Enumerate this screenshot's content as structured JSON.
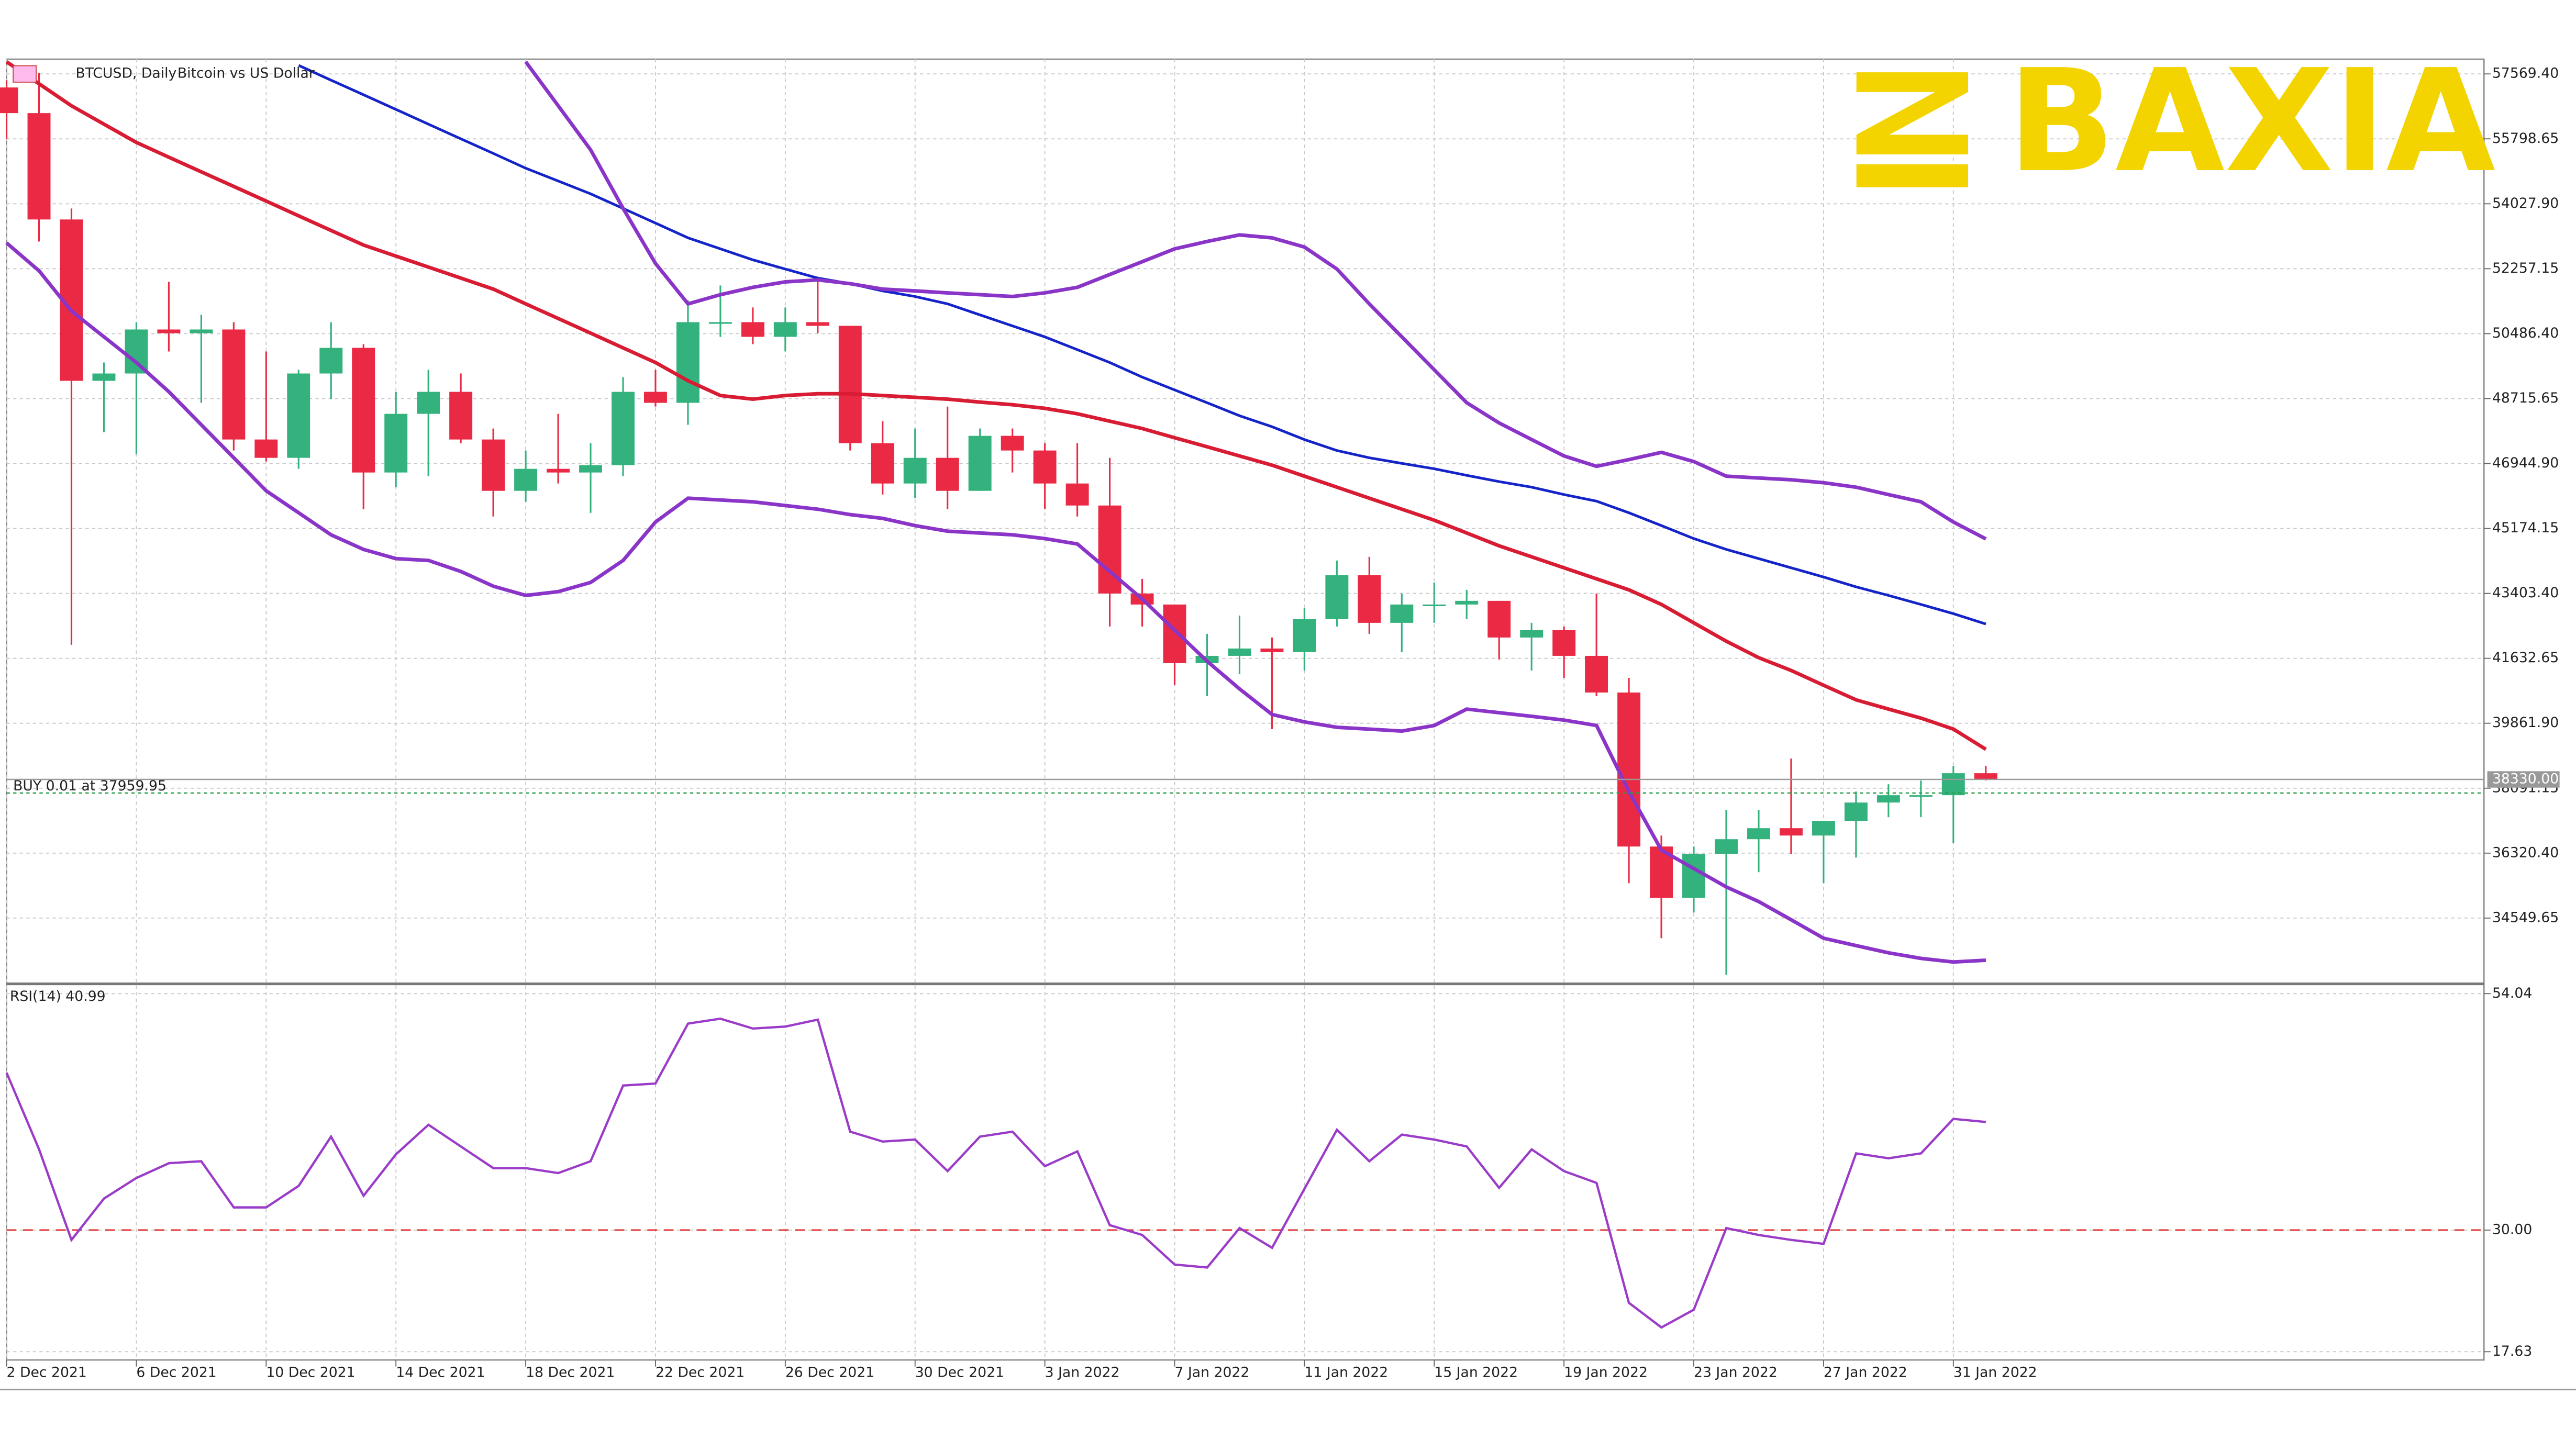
{
  "logo": "BAXIA",
  "chart_data": [
    {
      "type": "candlestick",
      "title": "BTCUSD, Daily",
      "subtitle": "Bitcoin vs US Dollar",
      "categories": [
        "2 Dec 2021",
        null,
        null,
        null,
        "6 Dec 2021",
        null,
        null,
        null,
        "10 Dec 2021",
        null,
        null,
        null,
        "14 Dec 2021",
        null,
        null,
        null,
        "18 Dec 2021",
        null,
        null,
        null,
        "22 Dec 2021",
        null,
        null,
        null,
        "26 Dec 2021",
        null,
        null,
        null,
        "30 Dec 2021",
        null,
        null,
        null,
        "3 Jan 2022",
        null,
        null,
        null,
        "7 Jan 2022",
        null,
        null,
        null,
        "11 Jan 2022",
        null,
        null,
        null,
        "15 Jan 2022",
        null,
        null,
        null,
        "19 Jan 2022",
        null,
        null,
        null,
        "23 Jan 2022",
        null,
        null,
        null,
        "27 Jan 2022",
        null,
        null,
        null,
        "31 Jan 2022",
        null
      ],
      "open": [
        57200,
        56500,
        53600,
        49200,
        49400,
        50600,
        50500,
        50600,
        47600,
        47100,
        49400,
        50100,
        46700,
        48300,
        48900,
        47600,
        46200,
        46800,
        46700,
        46900,
        48900,
        48600,
        50800,
        50800,
        50400,
        50800,
        50700,
        47500,
        46400,
        47100,
        46200,
        47700,
        47300,
        46400,
        45800,
        43400,
        43100,
        41500,
        41700,
        41900,
        41800,
        42700,
        43900,
        42600,
        43100,
        43100,
        43200,
        42200,
        42400,
        41700,
        40700,
        36500,
        35100,
        36300,
        36700,
        37000,
        36800,
        37200,
        37700,
        37900,
        37900,
        38500
      ],
      "high": [
        57400,
        57600,
        53900,
        49700,
        50800,
        51900,
        51000,
        50800,
        50000,
        49500,
        50800,
        50200,
        48900,
        49500,
        49400,
        47900,
        47300,
        48300,
        47500,
        49300,
        49500,
        51400,
        51800,
        51200,
        51200,
        52000,
        50700,
        48100,
        47900,
        48500,
        47900,
        47900,
        47500,
        47500,
        47100,
        43800,
        43100,
        42300,
        42800,
        42200,
        43000,
        44300,
        44400,
        43400,
        43700,
        43500,
        43200,
        42600,
        42500,
        43400,
        41100,
        36800,
        36500,
        37500,
        37500,
        38900,
        37200,
        38000,
        38200,
        38300,
        38700,
        38700
      ],
      "low": [
        55800,
        53000,
        42000,
        47800,
        47200,
        50000,
        48600,
        47300,
        47000,
        46800,
        48700,
        45700,
        46300,
        46600,
        47500,
        45500,
        45900,
        46400,
        45600,
        46600,
        48500,
        48000,
        50400,
        50200,
        50000,
        50500,
        47300,
        46100,
        46000,
        45700,
        46200,
        46700,
        45700,
        45500,
        42500,
        42500,
        40900,
        40600,
        41200,
        39700,
        41300,
        42500,
        42300,
        41800,
        42600,
        42700,
        41600,
        41300,
        41100,
        40600,
        35500,
        34000,
        34700,
        33000,
        35800,
        36300,
        35500,
        36200,
        37300,
        37300,
        36600,
        38300
      ],
      "close": [
        56500,
        53600,
        49200,
        49400,
        50600,
        50500,
        50600,
        47600,
        47100,
        49400,
        50100,
        46700,
        48300,
        48900,
        47600,
        46200,
        46800,
        46700,
        46900,
        48900,
        48600,
        50800,
        50800,
        50400,
        50800,
        50700,
        47500,
        46400,
        47100,
        46200,
        47700,
        47300,
        46400,
        45800,
        43400,
        43100,
        41500,
        41700,
        41900,
        41800,
        42700,
        43900,
        42600,
        43100,
        43100,
        43200,
        42200,
        42400,
        41700,
        40700,
        36500,
        35100,
        36300,
        36700,
        37000,
        36800,
        37200,
        37700,
        37900,
        37900,
        38500,
        38330
      ],
      "up_color": "#34b27d",
      "down_color": "#ea2a44",
      "overlays": [
        {
          "color": "#d81c33",
          "values": [
            57900,
            57300,
            56700,
            56200,
            55700,
            55300,
            54900,
            54500,
            54100,
            53700,
            53300,
            52900,
            52600,
            52300,
            52000,
            51700,
            51300,
            50900,
            50500,
            50100,
            49700,
            49200,
            48800,
            48700,
            48800,
            48850,
            48850,
            48800,
            48750,
            48700,
            48620,
            48550,
            48450,
            48300,
            48100,
            47900,
            47650,
            47400,
            47150,
            46900,
            46600,
            46300,
            46000,
            45700,
            45400,
            45050,
            44700,
            44400,
            44100,
            43800,
            43500,
            43100,
            42600,
            42100,
            41650,
            41300,
            40900,
            40500,
            40250,
            40000,
            39700,
            39150
          ]
        },
        {
          "color": "#1424c8",
          "values": [
            null,
            null,
            null,
            null,
            null,
            null,
            null,
            null,
            null,
            57800,
            57400,
            57000,
            56600,
            56200,
            55800,
            55400,
            55000,
            54650,
            54300,
            53900,
            53500,
            53100,
            52800,
            52500,
            52250,
            52000,
            51850,
            51650,
            51500,
            51300,
            51000,
            50700,
            50400,
            50050,
            49700,
            49300,
            48950,
            48600,
            48250,
            47950,
            47600,
            47300,
            47100,
            46950,
            46800,
            46620,
            46450,
            46300,
            46100,
            45920,
            45600,
            45250,
            44900,
            44600,
            44350,
            44100,
            43850,
            43580,
            43350,
            43100,
            42850,
            42570
          ]
        },
        {
          "color": "#8a35c8",
          "values": [
            52960,
            52200,
            51100,
            50400,
            49700,
            48900,
            48000,
            47100,
            46200,
            45600,
            45000,
            44600,
            44350,
            44300,
            44000,
            43600,
            43350,
            43450,
            43700,
            44300,
            45350,
            46000,
            45950,
            45900,
            45800,
            45700,
            45550,
            45450,
            45250,
            45100,
            45050,
            45000,
            44900,
            44750,
            44000,
            43250,
            42400,
            41550,
            40800,
            40100,
            39900,
            39750,
            39700,
            39650,
            39800,
            40250,
            40150,
            40050,
            39950,
            39800,
            38000,
            36400,
            35900,
            35400,
            35000,
            34500,
            34000,
            33800,
            33600,
            33450,
            33350,
            33400
          ]
        },
        {
          "color": "#8a35c8",
          "values": [
            null,
            null,
            null,
            null,
            null,
            null,
            null,
            null,
            null,
            null,
            null,
            null,
            null,
            null,
            null,
            null,
            57900,
            56700,
            55500,
            53900,
            52400,
            51300,
            51550,
            51750,
            51900,
            51950,
            51850,
            51700,
            51650,
            51600,
            51550,
            51500,
            51600,
            51750,
            52100,
            52450,
            52800,
            53000,
            53180,
            53100,
            52850,
            52250,
            51300,
            50400,
            49500,
            48600,
            48050,
            47600,
            47150,
            46870,
            47050,
            47250,
            47000,
            46600,
            46550,
            46500,
            46420,
            46300,
            46100,
            45900,
            45350,
            44890
          ]
        }
      ],
      "last_price": {
        "value": 38330,
        "label": "38330.00"
      },
      "order_label": "BUY 0.01 at 37959.95",
      "order_price": 37959.95,
      "ylim": [
        32800,
        57972
      ],
      "yticks": [
        {
          "value": 57569.4,
          "label": "57569.40"
        },
        {
          "value": 55798.65,
          "label": "55798.65"
        },
        {
          "value": 54027.9,
          "label": "54027.90"
        },
        {
          "value": 52257.15,
          "label": "52257.15"
        },
        {
          "value": 50486.4,
          "label": "50486.40"
        },
        {
          "value": 48715.65,
          "label": "48715.65"
        },
        {
          "value": 46944.9,
          "label": "46944.90"
        },
        {
          "value": 45174.15,
          "label": "45174.15"
        },
        {
          "value": 43403.4,
          "label": "43403.40"
        },
        {
          "value": 41632.65,
          "label": "41632.65"
        },
        {
          "value": 39861.9,
          "label": "39861.90"
        },
        {
          "value": 38091.15,
          "label": "38091.15"
        },
        {
          "value": 36320.4,
          "label": "36320.40"
        },
        {
          "value": 34549.65,
          "label": "34549.65"
        }
      ],
      "grid": true
    },
    {
      "type": "line",
      "title": "RSI(14) 40.99",
      "color": "#9b3cc8",
      "values": [
        46.0,
        38.2,
        29.0,
        33.2,
        35.3,
        36.8,
        37.0,
        32.3,
        32.3,
        34.5,
        39.5,
        33.5,
        37.7,
        40.7,
        38.5,
        36.3,
        36.3,
        35.8,
        37.0,
        44.7,
        44.9,
        51.0,
        51.5,
        50.5,
        50.7,
        51.4,
        40.0,
        39.0,
        39.2,
        36.0,
        39.5,
        40.0,
        36.5,
        38.0,
        30.5,
        29.5,
        26.5,
        26.2,
        30.2,
        28.2,
        34.2,
        40.2,
        37.0,
        39.7,
        39.2,
        38.5,
        34.3,
        38.2,
        36.0,
        34.8,
        22.6,
        20.1,
        21.9,
        30.2,
        29.5,
        29.0,
        28.6,
        37.8,
        37.3,
        37.8,
        41.3,
        40.99
      ],
      "level": 30,
      "level_color": "#e04040",
      "ylim": [
        16.79,
        54.87
      ],
      "yticks": [
        54.04,
        {
          "value": 30,
          "label": "30.00"
        },
        17.63
      ],
      "grid": true
    }
  ]
}
